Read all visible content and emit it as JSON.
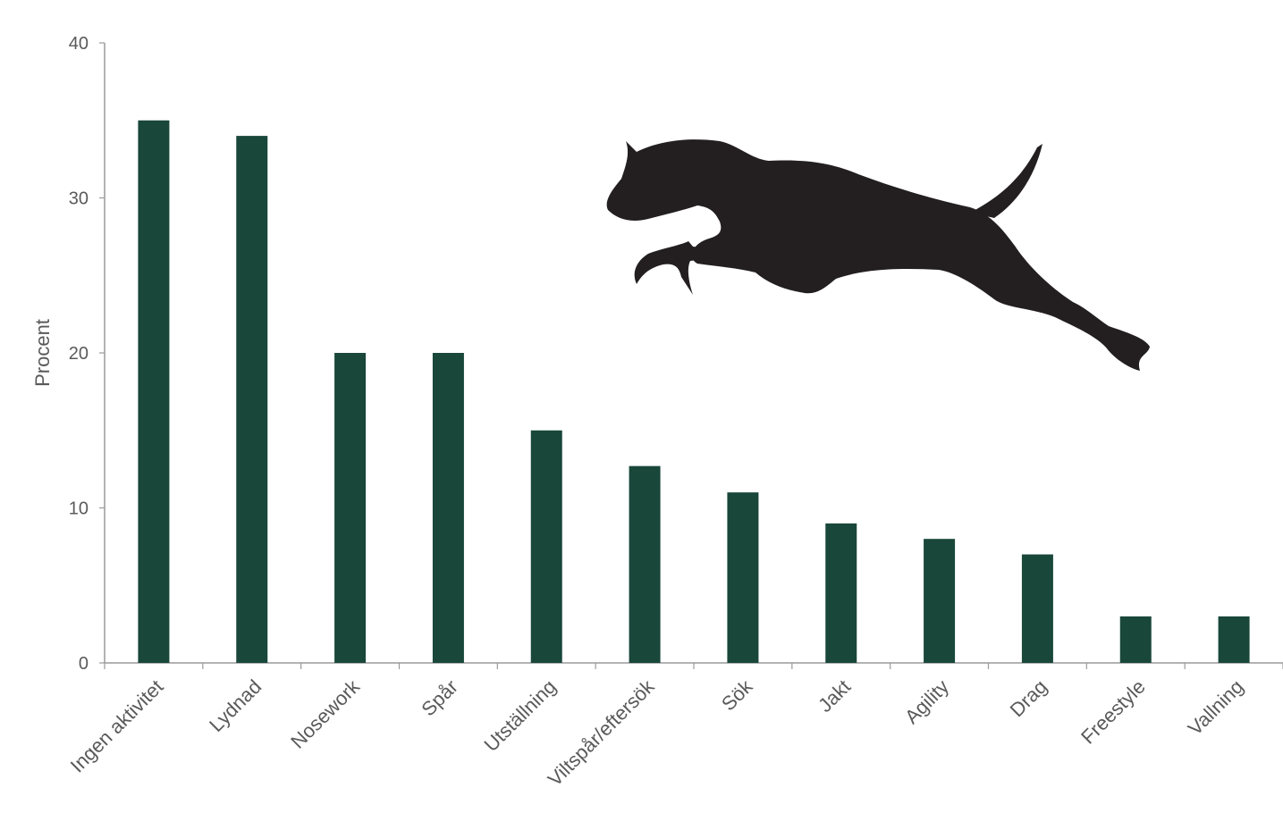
{
  "chart_data": {
    "type": "bar",
    "title": "",
    "xlabel": "",
    "ylabel": "Procent",
    "ylim": [
      0,
      40
    ],
    "yticks": [
      0,
      10,
      20,
      30,
      40
    ],
    "grid": false,
    "bar_color": "#19473a",
    "categories": [
      "Ingen aktivitet",
      "Lydnad",
      "Nosework",
      "Spår",
      "Utställning",
      "Viltspår/eftersök",
      "Sök",
      "Jakt",
      "Agility",
      "Drag",
      "Freestyle",
      "Vallning"
    ],
    "values": [
      35,
      34,
      20,
      20,
      15,
      12.7,
      11,
      9,
      8,
      7,
      3,
      3
    ]
  },
  "illustration": {
    "icon": "jumping-dog-silhouette-icon",
    "color": "#231f20"
  }
}
